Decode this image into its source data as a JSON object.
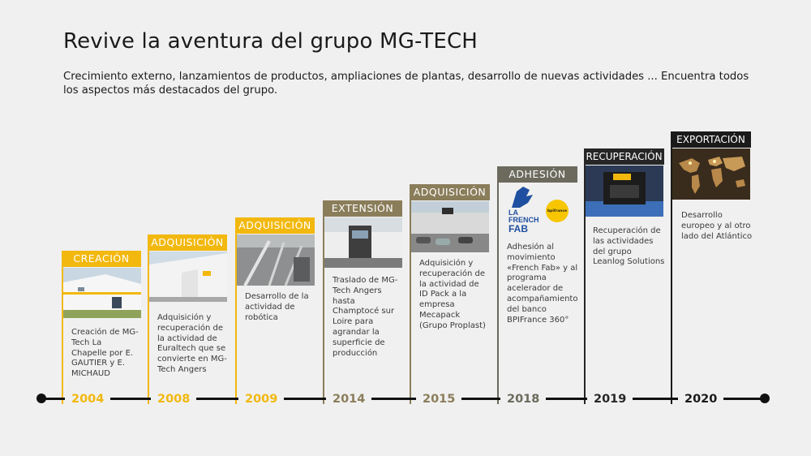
{
  "header": {
    "title": "Revive la aventura del grupo MG-TECH",
    "subtitle": "Crecimiento externo, lanzamientos de productos, ampliaciones de plantas, desarrollo de nuevas actividades ... Encuentra todos los aspectos más destacados del grupo."
  },
  "colors": {
    "gold": "#f2b80e",
    "tan": "#8a7d5a",
    "gray": "#6b6a5d",
    "dark": "#262626"
  },
  "milestones": [
    {
      "year": "2004",
      "label": "CREACIÓN",
      "text": "Creación de MG-Tech La Chapelle por E. GAUTIER y E. MICHAUD"
    },
    {
      "year": "2008",
      "label": "ADQUISICIÓN",
      "text": "Adquisición y recuperación de la actividad de Euraltech que se convierte en MG-Tech Angers"
    },
    {
      "year": "2009",
      "label": "ADQUISICIÓN",
      "text": "Desarrollo de la actividad de robótica"
    },
    {
      "year": "2014",
      "label": "EXTENSIÓN",
      "text": "Traslado de MG-Tech Angers hasta Champtocé sur Loire para agrandar la superficie de producción"
    },
    {
      "year": "2015",
      "label": "ADQUISICIÓN",
      "text": "Adquisición y recuperación de la actividad de ID Pack a la empresa Mecapack (Grupo Proplast)"
    },
    {
      "year": "2018",
      "label": "ADHESIÓN",
      "text": "Adhesión al movimiento «French Fab» y al programa acelerador de acompañamiento del banco BPIFrance 360°",
      "logo1": [
        "LA",
        "FRENCH",
        "FAB"
      ],
      "logo2": "bpifrance"
    },
    {
      "year": "2019",
      "label": "RECUPERACIÓN",
      "text": "Recuperación de las actividades del grupo Leanlog Solutions"
    },
    {
      "year": "2020",
      "label": "EXPORTACIÓN",
      "text": "Desarrollo europeo y al otro lado del Atlántico"
    }
  ]
}
